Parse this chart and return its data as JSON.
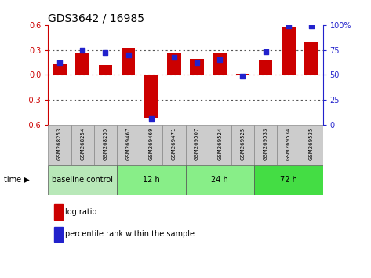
{
  "title": "GDS3642 / 16985",
  "samples": [
    "GSM268253",
    "GSM268254",
    "GSM268255",
    "GSM269467",
    "GSM269469",
    "GSM269471",
    "GSM269507",
    "GSM269524",
    "GSM269525",
    "GSM269533",
    "GSM269534",
    "GSM269535"
  ],
  "log_ratio": [
    0.13,
    0.27,
    0.12,
    0.32,
    -0.52,
    0.27,
    0.19,
    0.26,
    0.01,
    0.17,
    0.58,
    0.4
  ],
  "percentile_rank": [
    62,
    75,
    72,
    70,
    6,
    68,
    62,
    65,
    49,
    73,
    99,
    99
  ],
  "ylim_left": [
    -0.6,
    0.6
  ],
  "ylim_right": [
    0,
    100
  ],
  "yticks_left": [
    -0.6,
    -0.3,
    0.0,
    0.3,
    0.6
  ],
  "yticks_right": [
    0,
    25,
    50,
    75,
    100
  ],
  "bar_color": "#cc0000",
  "dot_color": "#2222cc",
  "dotted_line_color": "#555555",
  "zero_line_color": "#cc0000",
  "groups": [
    {
      "label": "baseline control",
      "start": 0,
      "end": 3
    },
    {
      "label": "12 h",
      "start": 3,
      "end": 6
    },
    {
      "label": "24 h",
      "start": 6,
      "end": 9
    },
    {
      "label": "72 h",
      "start": 9,
      "end": 12
    }
  ],
  "group_colors": [
    "#b8e8b8",
    "#88ee88",
    "#88ee88",
    "#44dd44"
  ],
  "time_label": "time",
  "legend_log_ratio": "log ratio",
  "legend_percentile": "percentile rank within the sample",
  "axis_label_color_left": "#cc0000",
  "axis_label_color_right": "#2222cc",
  "sample_box_color": "#cccccc",
  "sample_box_edge": "#888888"
}
